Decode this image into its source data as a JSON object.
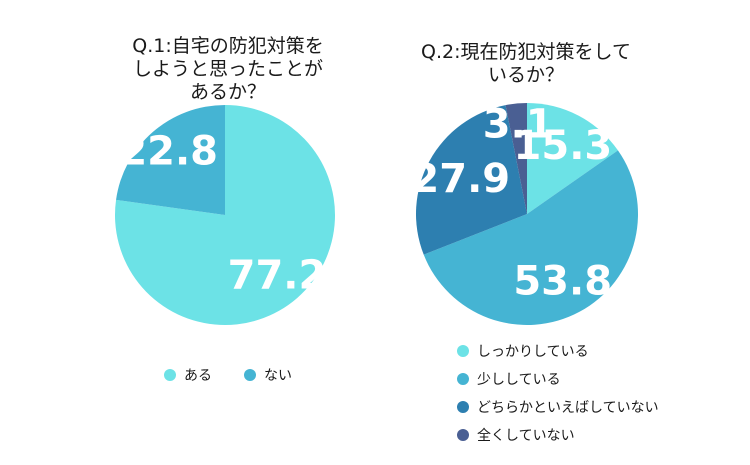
{
  "chart_data": [
    {
      "type": "pie",
      "title_lines": [
        "Q.1:自宅の防犯対策を",
        "しようと思ったことが",
        "あるか？"
      ],
      "categories": [
        "ある",
        "ない"
      ],
      "values": [
        77.2,
        22.8
      ],
      "data_labels": [
        "77.2",
        "22.8"
      ],
      "colors": [
        "#6ce2e6",
        "#45b4d3"
      ],
      "legend_position": "bottom-horizontal"
    },
    {
      "type": "pie",
      "title_lines": [
        "Q.2:現在防犯対策をして",
        "いるか？"
      ],
      "categories": [
        "しっかりしている",
        "少ししている",
        "どちらかといえばしていない",
        "全くしていない"
      ],
      "values": [
        15.3,
        53.8,
        27.9,
        3.1
      ],
      "data_labels": [
        "15.3",
        "53.8",
        "27.9",
        "3.1"
      ],
      "colors": [
        "#6ce2e6",
        "#45b4d3",
        "#2d7fb0",
        "#4a5f93"
      ],
      "legend_position": "bottom-vertical"
    }
  ]
}
